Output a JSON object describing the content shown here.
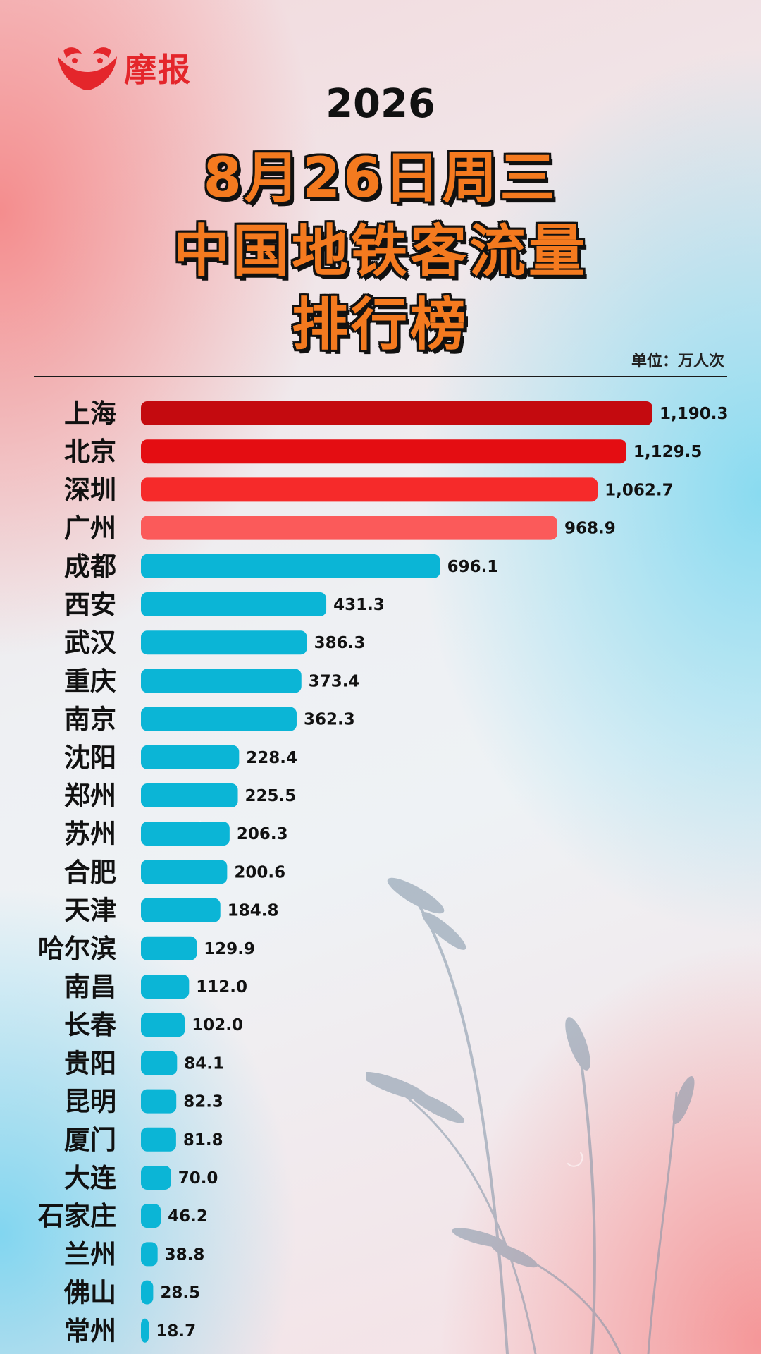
{
  "brand": {
    "name": "摩报",
    "logo_icon": "bird-face-logo-icon",
    "color": "#e4262b"
  },
  "header": {
    "year": "2026",
    "date_line": "8月26日周三",
    "title_line": "中国地铁客流量",
    "subtitle_line": "排行榜",
    "unit": "单位：万人次"
  },
  "colors": {
    "title_fill": "#f47a1f",
    "top_bars": [
      "#c40a0f",
      "#e40d12",
      "#f62a2a",
      "#fb5a5a"
    ],
    "other_bars": "#0bb5d6"
  },
  "chart_data": {
    "type": "bar",
    "orientation": "horizontal",
    "title": "中国地铁客流量排行榜",
    "unit": "单位：万人次",
    "categories": [
      "上海",
      "北京",
      "深圳",
      "广州",
      "成都",
      "西安",
      "武汉",
      "重庆",
      "南京",
      "沈阳",
      "郑州",
      "苏州",
      "合肥",
      "天津",
      "哈尔滨",
      "南昌",
      "长春",
      "贵阳",
      "昆明",
      "厦门",
      "大连",
      "石家庄",
      "兰州",
      "佛山",
      "常州"
    ],
    "values": [
      1190.3,
      1129.5,
      1062.7,
      968.9,
      696.1,
      431.3,
      386.3,
      373.4,
      362.3,
      228.4,
      225.5,
      206.3,
      200.6,
      184.8,
      129.9,
      112.0,
      102.0,
      84.1,
      82.3,
      81.8,
      70.0,
      46.2,
      38.8,
      28.5,
      18.7
    ],
    "value_labels": [
      "1,190.3",
      "1,129.5",
      "1,062.7",
      "968.9",
      "696.1",
      "431.3",
      "386.3",
      "373.4",
      "362.3",
      "228.4",
      "225.5",
      "206.3",
      "200.6",
      "184.8",
      "129.9",
      "112.0",
      "102.0",
      "84.1",
      "82.3",
      "81.8",
      "70.0",
      "46.2",
      "38.8",
      "28.5",
      "18.7"
    ],
    "xlim": [
      0,
      1190.3
    ],
    "grid": false,
    "legend": "none"
  }
}
